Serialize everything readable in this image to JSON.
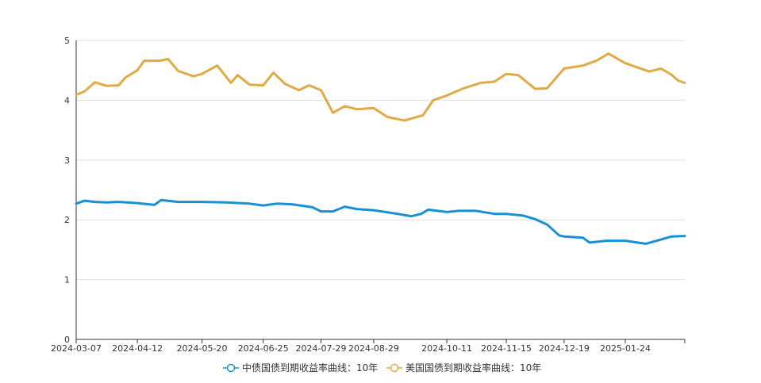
{
  "chart_data": {
    "type": "line",
    "title": "",
    "xlabel": "",
    "ylabel": "",
    "ylim": [
      0,
      5
    ],
    "yticks": [
      0,
      1,
      2,
      3,
      4,
      5
    ],
    "x_ticks": [
      "2024-03-07",
      "2024-04-12",
      "2024-05-20",
      "2024-06-25",
      "2024-07-29",
      "2024-08-29",
      "2024-10-11",
      "2024-11-15",
      "2024-12-19",
      "2025-01-24"
    ],
    "x_range": [
      "2024-03-07",
      "2025-02-28"
    ],
    "grid": "horizontal",
    "legend_position": "bottom-center",
    "series": [
      {
        "name": "中债国债到期收益率曲线：10年",
        "color": "#1890d6",
        "points": [
          [
            "2024-03-07",
            2.27
          ],
          [
            "2024-03-12",
            2.32
          ],
          [
            "2024-03-18",
            2.3
          ],
          [
            "2024-03-25",
            2.29
          ],
          [
            "2024-04-01",
            2.3
          ],
          [
            "2024-04-12",
            2.28
          ],
          [
            "2024-04-22",
            2.25
          ],
          [
            "2024-04-26",
            2.33
          ],
          [
            "2024-05-06",
            2.3
          ],
          [
            "2024-05-20",
            2.3
          ],
          [
            "2024-06-03",
            2.29
          ],
          [
            "2024-06-17",
            2.27
          ],
          [
            "2024-06-25",
            2.24
          ],
          [
            "2024-07-03",
            2.27
          ],
          [
            "2024-07-12",
            2.26
          ],
          [
            "2024-07-24",
            2.21
          ],
          [
            "2024-07-29",
            2.14
          ],
          [
            "2024-08-05",
            2.14
          ],
          [
            "2024-08-12",
            2.22
          ],
          [
            "2024-08-19",
            2.18
          ],
          [
            "2024-08-29",
            2.16
          ],
          [
            "2024-09-12",
            2.1
          ],
          [
            "2024-09-20",
            2.06
          ],
          [
            "2024-09-26",
            2.1
          ],
          [
            "2024-09-30",
            2.17
          ],
          [
            "2024-10-11",
            2.13
          ],
          [
            "2024-10-18",
            2.15
          ],
          [
            "2024-10-28",
            2.15
          ],
          [
            "2024-11-08",
            2.1
          ],
          [
            "2024-11-15",
            2.1
          ],
          [
            "2024-11-25",
            2.07
          ],
          [
            "2024-12-02",
            2.01
          ],
          [
            "2024-12-09",
            1.92
          ],
          [
            "2024-12-16",
            1.74
          ],
          [
            "2024-12-19",
            1.72
          ],
          [
            "2024-12-30",
            1.7
          ],
          [
            "2025-01-03",
            1.62
          ],
          [
            "2025-01-13",
            1.65
          ],
          [
            "2025-01-24",
            1.65
          ],
          [
            "2025-02-05",
            1.6
          ],
          [
            "2025-02-14",
            1.67
          ],
          [
            "2025-02-20",
            1.72
          ],
          [
            "2025-02-28",
            1.73
          ]
        ]
      },
      {
        "name": "美国国债到期收益率曲线：10年",
        "color": "#e0aa45",
        "points": [
          [
            "2024-03-07",
            4.09
          ],
          [
            "2024-03-12",
            4.15
          ],
          [
            "2024-03-18",
            4.3
          ],
          [
            "2024-03-25",
            4.24
          ],
          [
            "2024-04-01",
            4.25
          ],
          [
            "2024-04-05",
            4.38
          ],
          [
            "2024-04-12",
            4.5
          ],
          [
            "2024-04-16",
            4.66
          ],
          [
            "2024-04-25",
            4.66
          ],
          [
            "2024-04-30",
            4.69
          ],
          [
            "2024-05-06",
            4.49
          ],
          [
            "2024-05-15",
            4.4
          ],
          [
            "2024-05-20",
            4.44
          ],
          [
            "2024-05-29",
            4.58
          ],
          [
            "2024-06-06",
            4.29
          ],
          [
            "2024-06-10",
            4.42
          ],
          [
            "2024-06-17",
            4.26
          ],
          [
            "2024-06-25",
            4.25
          ],
          [
            "2024-07-01",
            4.46
          ],
          [
            "2024-07-08",
            4.27
          ],
          [
            "2024-07-16",
            4.17
          ],
          [
            "2024-07-22",
            4.25
          ],
          [
            "2024-07-29",
            4.17
          ],
          [
            "2024-08-05",
            3.79
          ],
          [
            "2024-08-12",
            3.9
          ],
          [
            "2024-08-19",
            3.85
          ],
          [
            "2024-08-29",
            3.87
          ],
          [
            "2024-09-06",
            3.72
          ],
          [
            "2024-09-16",
            3.66
          ],
          [
            "2024-09-27",
            3.75
          ],
          [
            "2024-10-03",
            4.0
          ],
          [
            "2024-10-11",
            4.08
          ],
          [
            "2024-10-21",
            4.2
          ],
          [
            "2024-10-31",
            4.29
          ],
          [
            "2024-11-08",
            4.31
          ],
          [
            "2024-11-15",
            4.44
          ],
          [
            "2024-11-22",
            4.42
          ],
          [
            "2024-12-02",
            4.19
          ],
          [
            "2024-12-09",
            4.2
          ],
          [
            "2024-12-19",
            4.53
          ],
          [
            "2024-12-30",
            4.58
          ],
          [
            "2025-01-07",
            4.66
          ],
          [
            "2025-01-14",
            4.78
          ],
          [
            "2025-01-24",
            4.62
          ],
          [
            "2025-01-31",
            4.55
          ],
          [
            "2025-02-07",
            4.48
          ],
          [
            "2025-02-14",
            4.53
          ],
          [
            "2025-02-20",
            4.43
          ],
          [
            "2025-02-24",
            4.33
          ],
          [
            "2025-02-28",
            4.29
          ]
        ]
      }
    ]
  }
}
